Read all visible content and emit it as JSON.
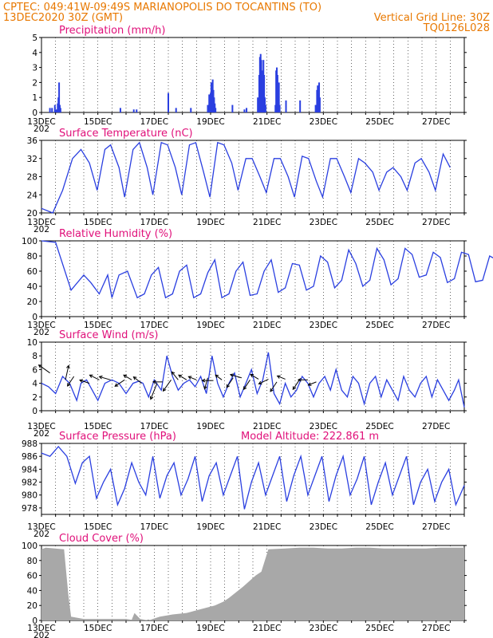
{
  "header": {
    "line1": "CPTEC:   049:41W-09:49S   MARIANOPOLIS DO TOCANTINS (TO)",
    "line2_left": "13DEC2020 30Z (GMT)",
    "line2_right": "Vertical Grid Line: 30Z",
    "line3_right": "TQ0126L028"
  },
  "x_axis": {
    "labels": [
      "13DEC",
      "15DEC",
      "17DEC",
      "19DEC",
      "21DEC",
      "23DEC",
      "25DEC",
      "27DEC"
    ],
    "sub_label": "202",
    "days": 15
  },
  "colors": {
    "line": "#2a3fe0",
    "bar": "#2a3fe0",
    "cloud": "#a8a8a8",
    "header": "#e87800",
    "title": "#e0107a",
    "wind_arrow": "#000000"
  },
  "chart_data": [
    {
      "type": "bar",
      "id": "precip",
      "title": "Precipitation (mm/h)",
      "ylim": [
        0,
        5
      ],
      "yticks": [
        "0",
        "1",
        "2",
        "3",
        "4",
        "5"
      ],
      "x": [
        0.6,
        0.75,
        0.95,
        1.05,
        1.15,
        1.2,
        1.25,
        1.3,
        1.35,
        5.6,
        6.55,
        6.75,
        9.0,
        9.55,
        10.6,
        11.8,
        11.9,
        12.0,
        12.05,
        12.1,
        12.15,
        12.2,
        12.25,
        12.3,
        12.35,
        13.55,
        14.4,
        14.55,
        15.35,
        15.45,
        15.5,
        15.55,
        15.6,
        15.65,
        15.7,
        15.75,
        15.8,
        15.85,
        15.9,
        16.6,
        16.65,
        16.7,
        16.75,
        16.8,
        16.85,
        16.9,
        17.35,
        18.35,
        19.45,
        19.55,
        19.6,
        19.65,
        19.7,
        19.75
      ],
      "values": [
        0.3,
        0.3,
        0.5,
        0.2,
        0.6,
        1.0,
        2.0,
        0.5,
        0.3,
        0.3,
        0.2,
        0.2,
        1.3,
        0.3,
        0.3,
        0.5,
        1.2,
        1.3,
        2.0,
        1.5,
        2.2,
        1.5,
        1.0,
        0.6,
        0.3,
        0.5,
        0.2,
        0.3,
        1.0,
        2.5,
        3.7,
        3.9,
        3.5,
        2.8,
        1.5,
        3.5,
        2.5,
        1.0,
        0.5,
        0.5,
        2.8,
        3.0,
        2.5,
        1.5,
        2.0,
        0.5,
        0.8,
        0.8,
        0.5,
        1.5,
        1.8,
        1.2,
        2.0,
        1.0
      ]
    },
    {
      "type": "line",
      "id": "temp",
      "title": "Surface Temperature (nC)",
      "ylim": [
        20,
        36
      ],
      "yticks": [
        "20",
        "24",
        "28",
        "32",
        "36"
      ],
      "x": [
        0,
        0.8,
        1.5,
        2.2,
        2.8,
        3.4,
        3.95,
        4.5,
        4.9,
        5.5,
        5.9,
        6.5,
        6.95,
        7.5,
        7.9,
        8.5,
        8.95,
        9.5,
        9.95,
        10.5,
        10.95,
        11.5,
        11.95,
        12.5,
        12.95,
        13.5,
        13.95,
        14.5,
        14.95,
        15.5,
        15.95,
        16.5,
        16.95,
        17.5,
        17.95,
        18.5,
        18.95,
        19.5,
        19.95,
        20.5,
        20.95,
        21.5,
        21.95,
        22.5,
        22.95,
        23.5,
        23.95,
        24.5,
        24.95,
        25.5,
        25.95,
        26.5,
        26.95,
        27.5,
        27.95,
        28.5,
        29
      ],
      "values": [
        21,
        20,
        25,
        32,
        34,
        31,
        25,
        34,
        35,
        30,
        23.5,
        34,
        35.5,
        30,
        24,
        35.5,
        35,
        30,
        24,
        35,
        35.5,
        29,
        23.5,
        35.5,
        35,
        31,
        25,
        32,
        32,
        28,
        24.5,
        32,
        32,
        28,
        23.5,
        32.5,
        32,
        27,
        23.5,
        32,
        32,
        28,
        24.5,
        32,
        31,
        29,
        25,
        29,
        30,
        28,
        25,
        31,
        32,
        29,
        25,
        33,
        30
      ]
    },
    {
      "type": "line",
      "id": "rh",
      "title": "Relative Humidity (%)",
      "ylim": [
        0,
        100
      ],
      "yticks": [
        "0",
        "20",
        "40",
        "60",
        "80",
        "100"
      ],
      "x": [
        0,
        1.0,
        2.1,
        3.0,
        3.5,
        4.1,
        4.7,
        5.0,
        5.5,
        6.1,
        6.8,
        7.3,
        7.8,
        8.3,
        8.8,
        9.3,
        9.8,
        10.3,
        10.8,
        11.3,
        11.8,
        12.3,
        12.8,
        13.3,
        13.8,
        14.3,
        14.8,
        15.3,
        15.8,
        16.3,
        16.8,
        17.3,
        17.8,
        18.3,
        18.8,
        19.3,
        19.8,
        20.3,
        20.8,
        21.3,
        21.8,
        22.3,
        22.8,
        23.3,
        23.8,
        24.3,
        24.8,
        25.3,
        25.8,
        26.3,
        26.8,
        27.3,
        27.8,
        28.3,
        28.8,
        29.3,
        29.8,
        30.3,
        30.8,
        31.3,
        31.8,
        32.3,
        32.8,
        33.3,
        33.8,
        34.3,
        34.8,
        35.3,
        35.8
      ],
      "values": [
        100,
        98,
        35,
        55,
        45,
        30,
        55,
        25,
        55,
        60,
        25,
        30,
        55,
        65,
        25,
        30,
        60,
        68,
        25,
        30,
        58,
        75,
        25,
        30,
        60,
        72,
        28,
        30,
        60,
        75,
        32,
        38,
        70,
        68,
        35,
        40,
        80,
        72,
        38,
        48,
        88,
        70,
        40,
        48,
        90,
        75,
        42,
        50,
        90,
        82,
        52,
        55,
        85,
        78,
        45,
        50,
        85,
        82,
        46,
        48,
        80,
        75,
        42,
        48,
        78,
        72,
        45,
        47,
        48
      ]
    },
    {
      "type": "line",
      "id": "wind",
      "title": "Surface Wind (m/s)",
      "ylim": [
        0,
        10
      ],
      "yticks": [
        "0",
        "2",
        "4",
        "6",
        "8",
        "10"
      ],
      "x": [
        0,
        0.5,
        1.0,
        1.5,
        2.0,
        2.5,
        2.8,
        3.2,
        3.6,
        4.0,
        4.5,
        5.0,
        5.5,
        6.0,
        6.5,
        6.9,
        7.2,
        7.6,
        8.0,
        8.5,
        8.9,
        9.3,
        9.7,
        10.1,
        10.5,
        10.9,
        11.3,
        11.7,
        12.1,
        12.5,
        12.9,
        13.3,
        13.7,
        14.1,
        14.5,
        14.9,
        15.3,
        15.7,
        16.1,
        16.5,
        16.9,
        17.3,
        17.7,
        18.1,
        18.5,
        18.9,
        19.3,
        19.7,
        20.1,
        20.5,
        20.9,
        21.3,
        21.7,
        22.1,
        22.5,
        22.9,
        23.3,
        23.7,
        24.1,
        24.5,
        24.9,
        25.3,
        25.7,
        26.1,
        26.5,
        26.9,
        27.3,
        27.7,
        28.1,
        28.5,
        28.9,
        29.3,
        29.6,
        30
      ],
      "values": [
        4,
        3.5,
        2.5,
        5,
        4,
        1.5,
        4,
        4.5,
        3,
        1.5,
        4,
        4.5,
        4,
        2.5,
        4,
        4.3,
        4,
        2,
        4.5,
        3,
        8,
        5,
        3,
        4,
        4.5,
        3.5,
        5,
        2.5,
        8,
        4,
        2,
        4,
        5.5,
        2,
        4,
        6,
        2.5,
        4.5,
        8.5,
        2.5,
        1,
        4,
        2,
        3,
        5,
        4,
        2,
        4,
        5,
        3,
        6,
        3,
        2,
        5,
        4,
        1,
        4,
        5,
        2,
        4.5,
        3,
        1.5,
        5,
        3,
        2,
        4,
        5,
        2,
        4.5,
        3,
        1.5,
        3,
        4.5,
        0.5
      ],
      "arrows": [
        [
          0.6,
          5.5,
          -0.7,
          0.5
        ],
        [
          1.7,
          4.5,
          0.2,
          0.9
        ],
        [
          2.3,
          5,
          -0.4,
          -0.6
        ],
        [
          3.4,
          4,
          -0.6,
          0.2
        ],
        [
          4.1,
          4.5,
          -0.6,
          0.3
        ],
        [
          4.9,
          4.5,
          -0.7,
          0.2
        ],
        [
          5.9,
          4.5,
          -0.6,
          -0.4
        ],
        [
          6.4,
          4.5,
          -0.5,
          0.3
        ],
        [
          7.1,
          4,
          -0.5,
          0.4
        ],
        [
          8.2,
          4,
          -0.4,
          -1
        ],
        [
          8.6,
          4.2,
          -0.6,
          0
        ],
        [
          9.2,
          4.5,
          -0.5,
          -0.7
        ],
        [
          9.7,
          4.5,
          -0.4,
          0.5
        ],
        [
          10.3,
          4.5,
          -0.5,
          0.3
        ],
        [
          11.0,
          4.5,
          -0.5,
          0.2
        ],
        [
          11.8,
          4.8,
          -0.2,
          -0.7
        ],
        [
          12.2,
          4.4,
          -0.7,
          0
        ],
        [
          12.8,
          4.5,
          -0.4,
          0.3
        ],
        [
          13.6,
          4.8,
          -0.4,
          -0.6
        ],
        [
          14.2,
          4.8,
          -0.7,
          0.2
        ],
        [
          14.8,
          4.5,
          -0.4,
          -0.6
        ],
        [
          15.4,
          4.6,
          -0.5,
          0.3
        ],
        [
          16.1,
          4.6,
          -0.6,
          -0.3
        ],
        [
          16.7,
          4.2,
          -0.4,
          -0.6
        ],
        [
          17.3,
          4.6,
          -0.5,
          0.2
        ],
        [
          18.3,
          4.5,
          -0.4,
          -0.6
        ],
        [
          18.9,
          4.5,
          -0.6,
          0
        ],
        [
          19.5,
          4.2,
          -0.5,
          -0.2
        ]
      ]
    },
    {
      "type": "line",
      "id": "pressure",
      "title": "Surface Pressure (hPa)",
      "annotation": "Model Altitude: 222.861 m",
      "ylim": [
        977,
        988
      ],
      "yticks": [
        "978",
        "980",
        "982",
        "984",
        "986",
        "988"
      ],
      "x": [
        0,
        0.6,
        1.2,
        1.8,
        2.4,
        2.9,
        3.4,
        3.9,
        4.4,
        4.9,
        5.4,
        5.9,
        6.4,
        6.9,
        7.4,
        7.9,
        8.4,
        8.9,
        9.4,
        9.9,
        10.4,
        10.9,
        11.4,
        11.9,
        12.4,
        12.9,
        13.4,
        13.9,
        14.4,
        14.9,
        15.4,
        15.9,
        16.4,
        16.9,
        17.4,
        17.9,
        18.4,
        18.9,
        19.4,
        19.9,
        20.4,
        20.9,
        21.4,
        21.9,
        22.4,
        22.9,
        23.4,
        23.9,
        24.4,
        24.9,
        25.4,
        25.9,
        26.4,
        26.9,
        27.4,
        27.9,
        28.4,
        28.9,
        29.4,
        29.8,
        30
      ],
      "values": [
        986.5,
        986,
        987.5,
        986,
        981.8,
        985,
        986,
        979.5,
        982,
        984,
        978.5,
        981,
        985,
        982,
        980,
        986,
        979.5,
        983,
        985,
        980,
        982.5,
        986,
        979,
        983,
        985,
        980,
        983,
        986,
        977.8,
        982,
        985,
        980,
        983,
        986,
        979,
        983,
        986,
        980,
        983,
        986,
        979,
        983,
        986,
        980,
        982.5,
        986,
        978.5,
        982,
        985,
        980,
        983,
        986,
        978.5,
        982,
        984,
        979,
        982,
        984,
        978.5,
        980.5,
        981.5
      ]
    },
    {
      "type": "area",
      "id": "cloud",
      "title": "Cloud Cover (%)",
      "ylim": [
        0,
        100
      ],
      "yticks": [
        "0",
        "20",
        "40",
        "60",
        "80",
        "100"
      ],
      "x": [
        0,
        0.3,
        1.6,
        1.9,
        2.1,
        3.0,
        4.5,
        5.0,
        5.5,
        6.0,
        6.4,
        6.6,
        7.0,
        7.6,
        7.9,
        8.4,
        9.3,
        10.3,
        11.3,
        12.3,
        12.9,
        13.3,
        14.3,
        15.2,
        15.6,
        16.1,
        17.3,
        18.3,
        19.3,
        20.3,
        21.3,
        22.3,
        23.3,
        24.3,
        25.3,
        26.3,
        27.3,
        28.3,
        29.3,
        30
      ],
      "values": [
        95,
        97,
        95,
        35,
        5,
        2,
        2,
        2,
        2,
        2,
        1,
        10,
        2,
        0,
        2,
        5,
        8,
        10,
        15,
        20,
        25,
        30,
        45,
        60,
        65,
        95,
        96,
        97,
        97,
        96,
        96,
        97,
        97,
        96,
        96,
        96,
        96,
        97,
        97,
        97
      ]
    }
  ]
}
